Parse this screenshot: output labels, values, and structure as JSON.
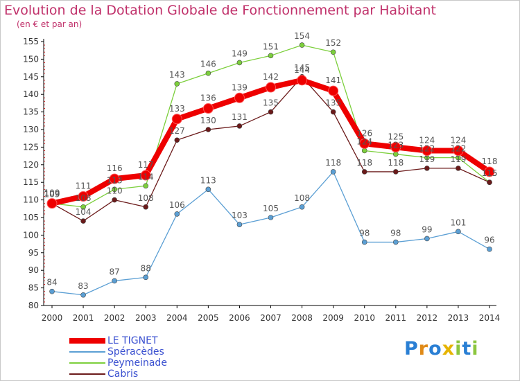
{
  "chart_data": {
    "type": "line",
    "title": "Evolution de la Dotation Globale de Fonctionnement par Habitant",
    "subtitle": "(en € et par an)",
    "xlabel": "",
    "ylabel": "",
    "ylim": [
      80,
      155
    ],
    "y_ticks": [
      80,
      85,
      90,
      95,
      100,
      105,
      110,
      115,
      120,
      125,
      130,
      135,
      140,
      145,
      150,
      155
    ],
    "x": [
      "2000",
      "2001",
      "2002",
      "2003",
      "2004",
      "2005",
      "2006",
      "2007",
      "2008",
      "2009",
      "2010",
      "2011",
      "2012",
      "2013",
      "2014"
    ],
    "grid": false,
    "legend_position": "bottom-left",
    "series": [
      {
        "name": "Spéracèdes",
        "color": "#5b9fd4",
        "values": [
          84,
          83,
          87,
          88,
          106,
          113,
          103,
          105,
          108,
          118,
          98,
          98,
          99,
          101,
          96
        ]
      },
      {
        "name": "Peymeinade",
        "color": "#7ccf3c",
        "values": [
          109,
          108,
          113,
          114,
          143,
          146,
          149,
          151,
          154,
          152,
          124,
          123,
          122,
          122,
          115
        ]
      },
      {
        "name": "Cabris",
        "color": "#6b1a1a",
        "values": [
          109,
          104,
          110,
          108,
          127,
          130,
          131,
          135,
          145,
          135,
          118,
          118,
          119,
          119,
          115
        ]
      },
      {
        "name": "LE TIGNET",
        "color": "#ee0000",
        "values": [
          109,
          111,
          116,
          117,
          133,
          136,
          139,
          142,
          144,
          141,
          126,
          125,
          124,
          124,
          118
        ]
      }
    ],
    "legend_order": [
      "LE TIGNET",
      "Spéracèdes",
      "Peymeinade",
      "Cabris"
    ]
  },
  "brand": {
    "letters": [
      "P",
      "r",
      "o",
      "x",
      "i",
      "t",
      "i"
    ],
    "colors": [
      "#2a7fd4",
      "#e08a18",
      "#2a7fd4",
      "#e6b400",
      "#8cc63f",
      "#2a7fd4",
      "#8cc63f"
    ]
  }
}
